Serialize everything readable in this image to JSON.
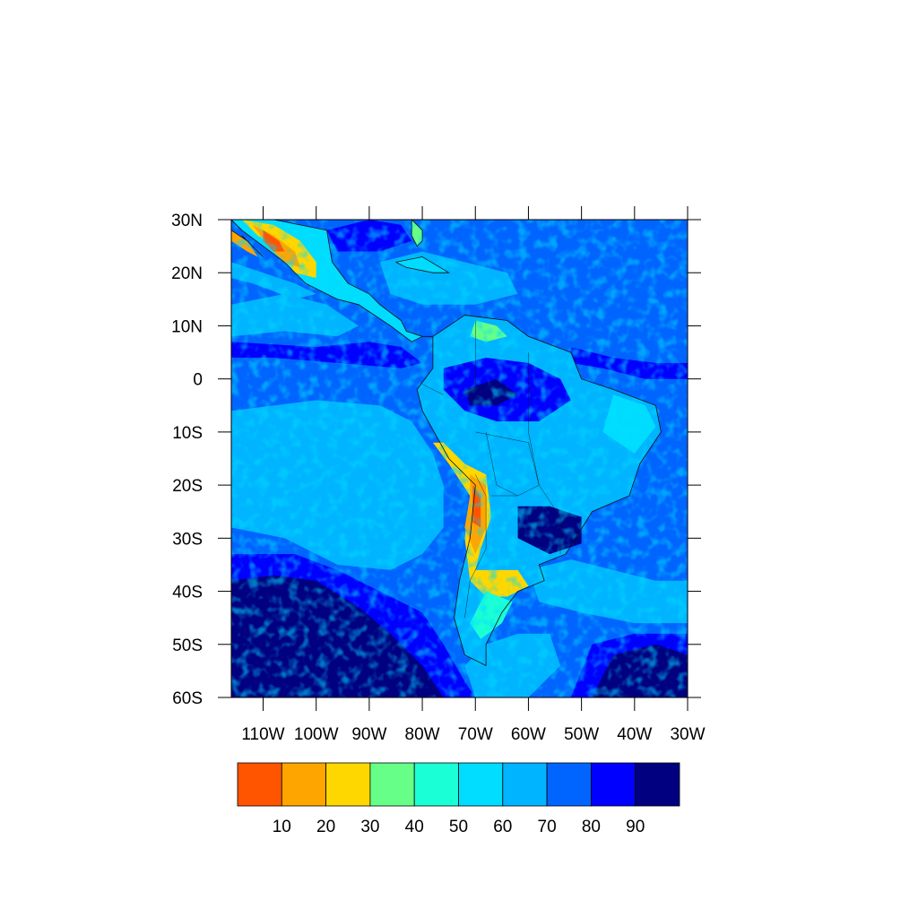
{
  "map": {
    "region": "Latin America and adjacent Pacific/Atlantic oceans",
    "lat_range": [
      -60,
      30
    ],
    "lon_range": [
      -116,
      -30
    ],
    "lat_ticks": [
      {
        "value": 30,
        "label": "30N"
      },
      {
        "value": 20,
        "label": "20N"
      },
      {
        "value": 10,
        "label": "10N"
      },
      {
        "value": 0,
        "label": "0"
      },
      {
        "value": -10,
        "label": "10S"
      },
      {
        "value": -20,
        "label": "20S"
      },
      {
        "value": -30,
        "label": "30S"
      },
      {
        "value": -40,
        "label": "40S"
      },
      {
        "value": -50,
        "label": "50S"
      },
      {
        "value": -60,
        "label": "60S"
      }
    ],
    "lon_ticks": [
      {
        "value": -110,
        "label": "110W"
      },
      {
        "value": -100,
        "label": "100W"
      },
      {
        "value": -90,
        "label": "90W"
      },
      {
        "value": -80,
        "label": "80W"
      },
      {
        "value": -70,
        "label": "70W"
      },
      {
        "value": -60,
        "label": "60W"
      },
      {
        "value": -50,
        "label": "50W"
      },
      {
        "value": -40,
        "label": "40W"
      },
      {
        "value": -30,
        "label": "30W"
      }
    ],
    "fill_type": "contour-filled raster"
  },
  "colorbar": {
    "orientation": "horizontal",
    "boxes": [
      {
        "color": "#ff5500"
      },
      {
        "color": "#ffa500"
      },
      {
        "color": "#ffd700"
      },
      {
        "color": "#66ff88"
      },
      {
        "color": "#1affd6"
      },
      {
        "color": "#00ddff"
      },
      {
        "color": "#00b4ff"
      },
      {
        "color": "#0064ff"
      },
      {
        "color": "#0000ff"
      },
      {
        "color": "#000080"
      }
    ],
    "labels": [
      "10",
      "20",
      "30",
      "40",
      "50",
      "60",
      "70",
      "80",
      "90"
    ]
  },
  "palette": {
    "ocean_base": "#0064ff",
    "ocean_light": "#00b4ff",
    "ocean_dark": "#0000ff",
    "ocean_darkest": "#000080",
    "arid_low": "#ff5500",
    "arid_mid": "#ffa500",
    "arid_yellow": "#ffd700",
    "green": "#66ff88",
    "teal": "#1affd6",
    "cyan": "#00ddff",
    "coast": "#111111"
  }
}
